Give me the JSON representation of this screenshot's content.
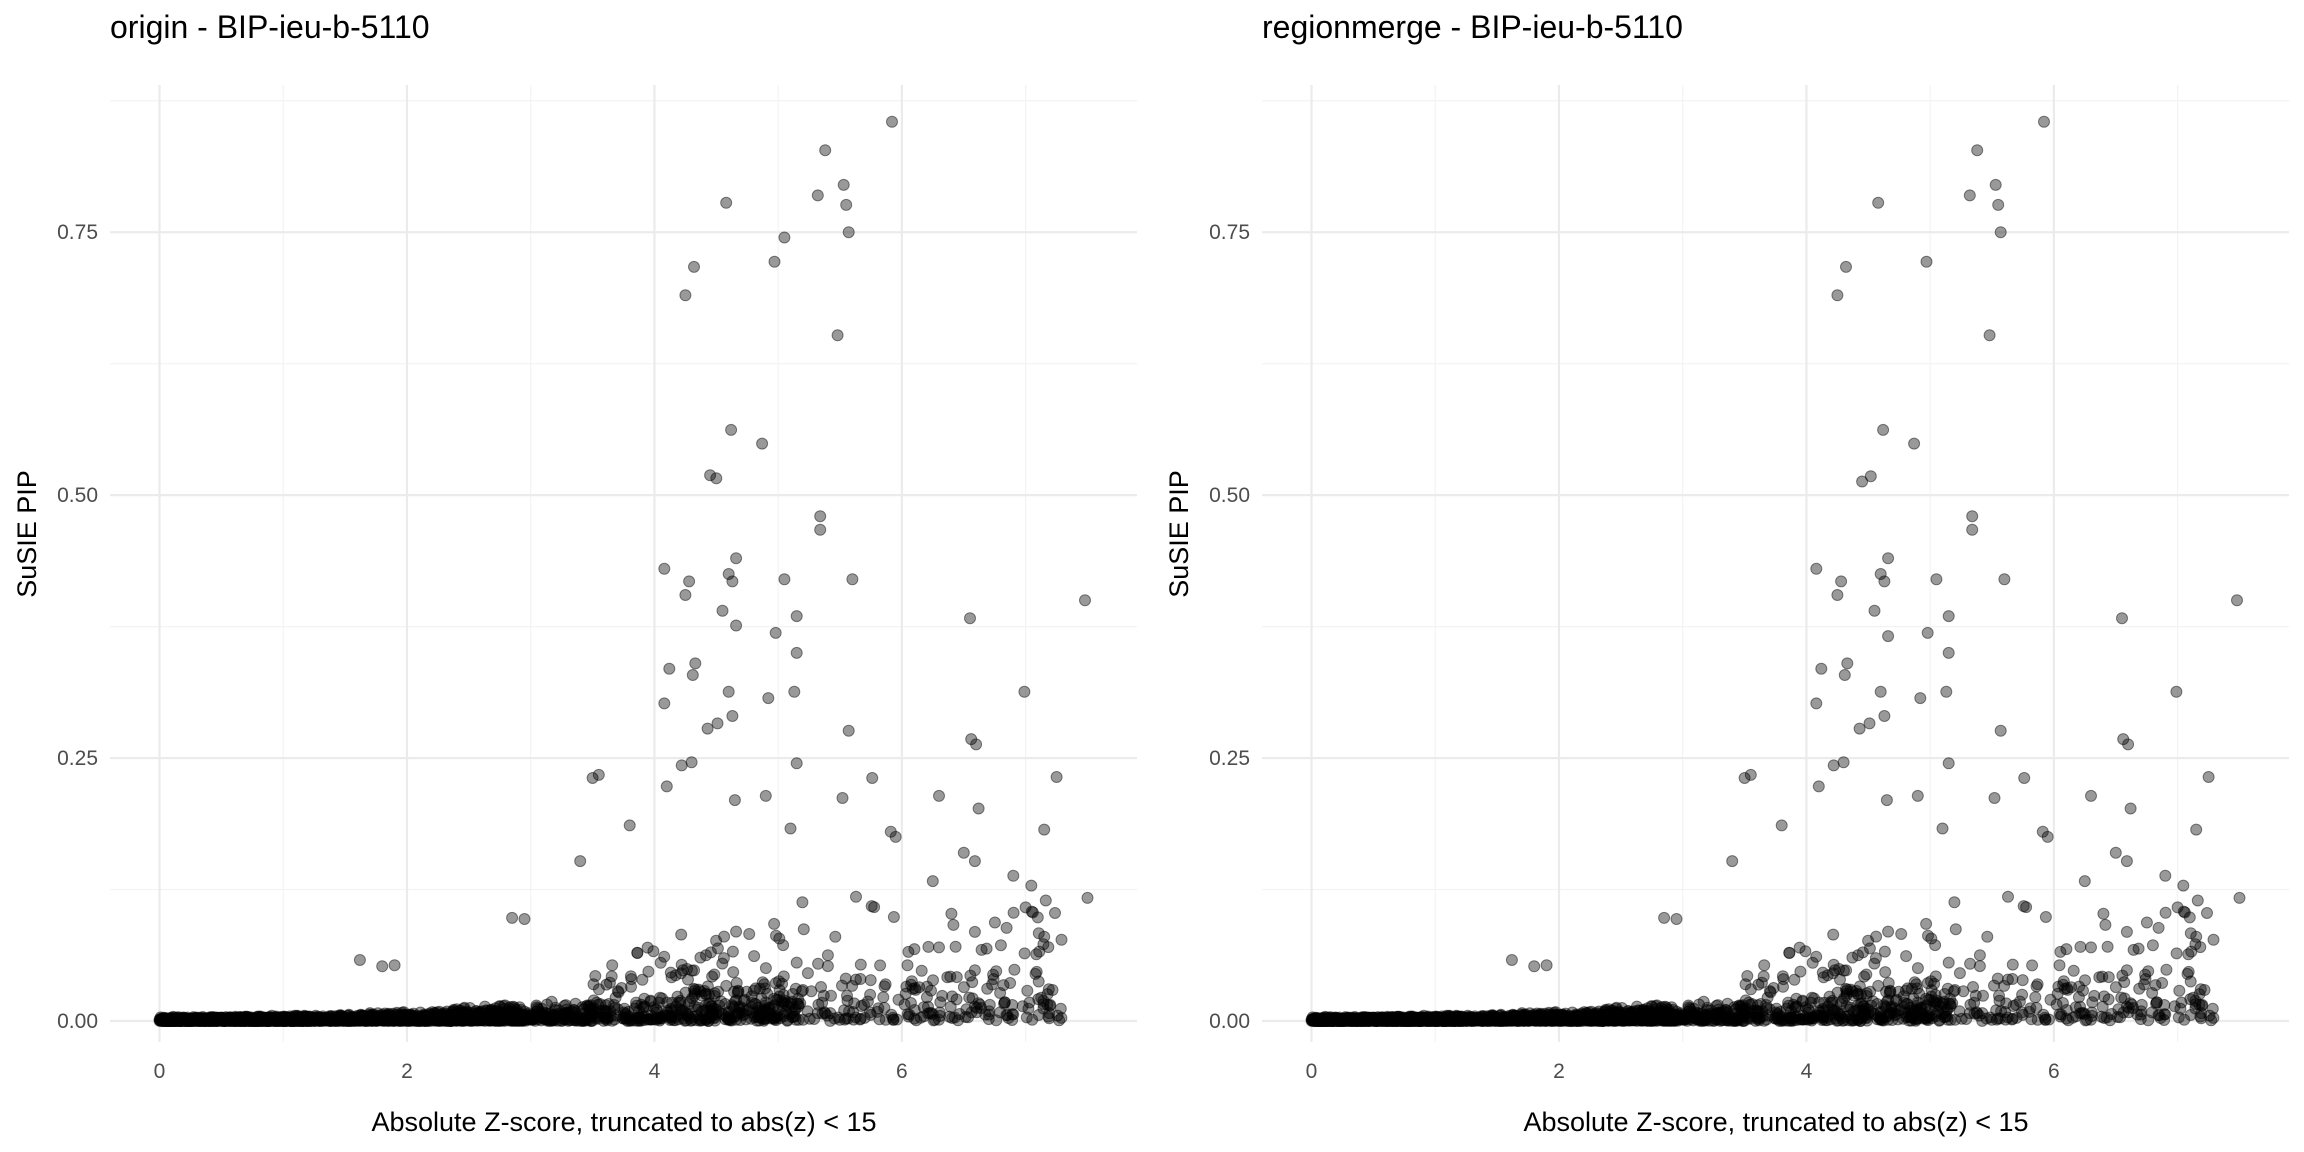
{
  "chart_data": [
    {
      "type": "scatter",
      "title": "origin - BIP-ieu-b-5110",
      "xlabel": "Absolute Z-score, truncated to abs(z) < 15",
      "ylabel": "SuSIE PIP",
      "xlim": [
        -0.4,
        7.9
      ],
      "ylim": [
        -0.02,
        0.89
      ],
      "xticks": [
        0,
        2,
        4,
        6
      ],
      "xtick_labels": [
        "0",
        "2",
        "4",
        "6"
      ],
      "yticks": [
        0,
        0.25,
        0.5,
        0.75
      ],
      "ytick_labels": [
        "0.00",
        "0.25",
        "0.50",
        "0.75"
      ],
      "grid": true,
      "legend": "none",
      "point_color": "#000000",
      "point_alpha": 0.4,
      "highlight_points": [
        [
          5.92,
          0.855
        ],
        [
          5.38,
          0.828
        ],
        [
          5.53,
          0.795
        ],
        [
          5.55,
          0.776
        ],
        [
          5.32,
          0.785
        ],
        [
          5.57,
          0.75
        ],
        [
          4.58,
          0.778
        ],
        [
          5.05,
          0.745
        ],
        [
          4.97,
          0.722
        ],
        [
          4.32,
          0.717
        ],
        [
          4.25,
          0.69
        ],
        [
          5.48,
          0.652
        ],
        [
          4.62,
          0.562
        ],
        [
          4.87,
          0.549
        ],
        [
          4.45,
          0.519
        ],
        [
          4.5,
          0.516
        ],
        [
          5.34,
          0.48
        ],
        [
          5.34,
          0.467
        ],
        [
          5.6,
          0.42
        ],
        [
          5.05,
          0.42
        ],
        [
          4.08,
          0.43
        ],
        [
          4.66,
          0.44
        ],
        [
          4.6,
          0.425
        ],
        [
          4.63,
          0.418
        ],
        [
          4.28,
          0.418
        ],
        [
          4.25,
          0.405
        ],
        [
          7.48,
          0.4
        ],
        [
          4.55,
          0.39
        ],
        [
          5.15,
          0.385
        ],
        [
          6.55,
          0.383
        ],
        [
          4.66,
          0.376
        ],
        [
          4.98,
          0.369
        ],
        [
          5.15,
          0.35
        ],
        [
          4.33,
          0.34
        ],
        [
          4.12,
          0.335
        ],
        [
          4.31,
          0.329
        ],
        [
          4.6,
          0.313
        ],
        [
          5.13,
          0.313
        ],
        [
          6.99,
          0.313
        ],
        [
          4.08,
          0.302
        ],
        [
          4.92,
          0.307
        ],
        [
          4.63,
          0.29
        ],
        [
          4.51,
          0.283
        ],
        [
          4.43,
          0.278
        ],
        [
          5.57,
          0.276
        ],
        [
          6.56,
          0.268
        ],
        [
          6.6,
          0.263
        ],
        [
          5.15,
          0.245
        ],
        [
          4.3,
          0.246
        ],
        [
          4.22,
          0.243
        ],
        [
          3.55,
          0.234
        ],
        [
          3.5,
          0.231
        ],
        [
          5.76,
          0.231
        ],
        [
          7.25,
          0.232
        ],
        [
          4.1,
          0.223
        ],
        [
          6.3,
          0.214
        ],
        [
          4.9,
          0.214
        ],
        [
          5.52,
          0.212
        ],
        [
          4.65,
          0.21
        ],
        [
          5.1,
          0.183
        ],
        [
          7.15,
          0.182
        ],
        [
          5.91,
          0.18
        ],
        [
          3.8,
          0.186
        ],
        [
          5.95,
          0.175
        ],
        [
          7.5,
          0.117
        ],
        [
          6.25,
          0.133
        ],
        [
          6.62,
          0.202
        ],
        [
          6.5,
          0.16
        ],
        [
          6.59,
          0.152
        ],
        [
          6.9,
          0.138
        ],
        [
          7.0,
          0.108
        ],
        [
          7.05,
          0.104
        ],
        [
          6.4,
          0.102
        ],
        [
          6.8,
          0.072
        ],
        [
          7.15,
          0.08
        ],
        [
          6.3,
          0.07
        ],
        [
          1.62,
          0.058
        ],
        [
          1.8,
          0.052
        ],
        [
          1.9,
          0.053
        ],
        [
          2.85,
          0.098
        ],
        [
          2.95,
          0.097
        ],
        [
          3.4,
          0.152
        ]
      ],
      "n_points_approx": 3000,
      "distribution_note": "dense cloud near y=0 for x in [0,5.2], sparser above"
    },
    {
      "type": "scatter",
      "title": "regionmerge - BIP-ieu-b-5110",
      "xlabel": "Absolute Z-score, truncated to abs(z) < 15",
      "ylabel": "SuSIE PIP",
      "xlim": [
        -0.4,
        7.9
      ],
      "ylim": [
        -0.02,
        0.89
      ],
      "xticks": [
        0,
        2,
        4,
        6
      ],
      "xtick_labels": [
        "0",
        "2",
        "4",
        "6"
      ],
      "yticks": [
        0,
        0.25,
        0.5,
        0.75
      ],
      "ytick_labels": [
        "0.00",
        "0.25",
        "0.50",
        "0.75"
      ],
      "grid": true,
      "legend": "none",
      "point_color": "#000000",
      "point_alpha": 0.4,
      "highlight_points": [
        [
          5.92,
          0.855
        ],
        [
          5.38,
          0.828
        ],
        [
          5.53,
          0.795
        ],
        [
          5.55,
          0.776
        ],
        [
          5.32,
          0.785
        ],
        [
          5.57,
          0.75
        ],
        [
          4.58,
          0.778
        ],
        [
          4.97,
          0.722
        ],
        [
          4.32,
          0.717
        ],
        [
          4.25,
          0.69
        ],
        [
          5.48,
          0.652
        ],
        [
          4.62,
          0.562
        ],
        [
          4.87,
          0.549
        ],
        [
          4.45,
          0.513
        ],
        [
          4.52,
          0.518
        ],
        [
          5.34,
          0.48
        ],
        [
          5.34,
          0.467
        ],
        [
          5.6,
          0.42
        ],
        [
          5.05,
          0.42
        ],
        [
          4.08,
          0.43
        ],
        [
          4.66,
          0.44
        ],
        [
          4.6,
          0.425
        ],
        [
          4.63,
          0.418
        ],
        [
          4.28,
          0.418
        ],
        [
          4.25,
          0.405
        ],
        [
          7.48,
          0.4
        ],
        [
          4.55,
          0.39
        ],
        [
          5.15,
          0.385
        ],
        [
          6.55,
          0.383
        ],
        [
          4.66,
          0.366
        ],
        [
          4.98,
          0.369
        ],
        [
          5.15,
          0.35
        ],
        [
          4.33,
          0.34
        ],
        [
          4.12,
          0.335
        ],
        [
          4.31,
          0.329
        ],
        [
          4.6,
          0.313
        ],
        [
          5.13,
          0.313
        ],
        [
          6.99,
          0.313
        ],
        [
          4.08,
          0.302
        ],
        [
          4.92,
          0.307
        ],
        [
          4.63,
          0.29
        ],
        [
          4.51,
          0.283
        ],
        [
          4.43,
          0.278
        ],
        [
          5.57,
          0.276
        ],
        [
          6.56,
          0.268
        ],
        [
          6.6,
          0.263
        ],
        [
          5.15,
          0.245
        ],
        [
          4.3,
          0.246
        ],
        [
          4.22,
          0.243
        ],
        [
          3.55,
          0.234
        ],
        [
          3.5,
          0.231
        ],
        [
          5.76,
          0.231
        ],
        [
          7.25,
          0.232
        ],
        [
          4.1,
          0.223
        ],
        [
          6.3,
          0.214
        ],
        [
          4.9,
          0.214
        ],
        [
          5.52,
          0.212
        ],
        [
          4.65,
          0.21
        ],
        [
          5.1,
          0.183
        ],
        [
          7.15,
          0.182
        ],
        [
          5.91,
          0.18
        ],
        [
          3.8,
          0.186
        ],
        [
          5.95,
          0.175
        ],
        [
          7.5,
          0.117
        ],
        [
          6.25,
          0.133
        ],
        [
          6.62,
          0.202
        ],
        [
          6.5,
          0.16
        ],
        [
          6.59,
          0.152
        ],
        [
          6.9,
          0.138
        ],
        [
          7.0,
          0.108
        ],
        [
          7.05,
          0.104
        ],
        [
          6.4,
          0.102
        ],
        [
          6.8,
          0.072
        ],
        [
          7.15,
          0.08
        ],
        [
          6.3,
          0.07
        ],
        [
          1.62,
          0.058
        ],
        [
          1.8,
          0.052
        ],
        [
          1.9,
          0.053
        ],
        [
          2.85,
          0.098
        ],
        [
          2.95,
          0.097
        ],
        [
          3.4,
          0.152
        ]
      ],
      "n_points_approx": 3000,
      "distribution_note": "dense cloud near y=0 for x in [0,5.2], sparser above"
    }
  ]
}
